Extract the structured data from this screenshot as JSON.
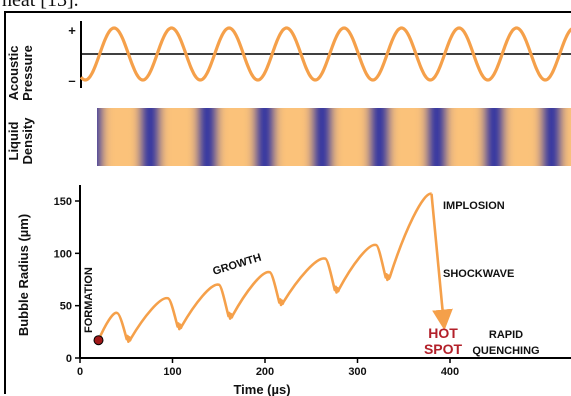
{
  "caption_fragment": "heat [13].",
  "pressure_panel": {
    "ylabel_line1": "Acoustic",
    "ylabel_line2": "Pressure",
    "plus_sign": "+",
    "minus_sign": "–"
  },
  "density_panel": {
    "ylabel_line1": "Liquid",
    "ylabel_line2": "Density"
  },
  "radius_panel": {
    "ylabel": "Bubble Radius  (µm)",
    "xlabel": "Time  (µs)",
    "x_ticks": [
      "0",
      "100",
      "200",
      "300",
      "400"
    ],
    "y_ticks": [
      "0",
      "50",
      "100",
      "150"
    ],
    "annotations": {
      "formation": "FORMATION",
      "growth": "GROWTH",
      "implosion": "IMPLOSION",
      "shockwave": "SHOCKWAVE",
      "hot_line1": "HOT",
      "hot_line2": "SPOT",
      "rapid_line1": "RAPID",
      "rapid_line2": "QUENCHING"
    }
  },
  "colors": {
    "wave": "#f5a04a",
    "density_light": "#fbc27a",
    "density_dark": "#3a3aa0",
    "hot_spot": "#b3202a",
    "formation_dot": "#a01818"
  },
  "chart_data": {
    "type": "line",
    "x": [
      20,
      40,
      55,
      95,
      110,
      150,
      165,
      205,
      220,
      265,
      280,
      320,
      335,
      380
    ],
    "series": [
      {
        "values": [
          17,
          43,
          18,
          57,
          30,
          70,
          40,
          82,
          53,
          95,
          65,
          108,
          77,
          157
        ]
      }
    ],
    "xlim": [
      0,
      480
    ],
    "ylim": [
      0,
      160
    ]
  }
}
